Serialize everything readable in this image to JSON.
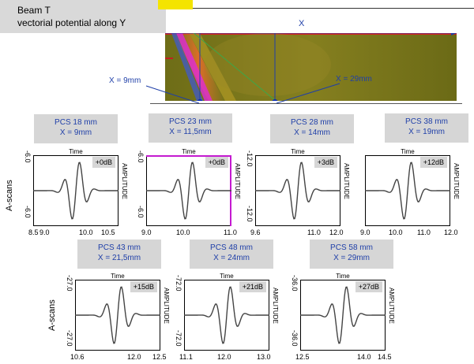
{
  "header": {
    "title_line1": "Beam T",
    "title_line2": "vectorial potential along Y"
  },
  "field": {
    "x_label": "X",
    "probe_label": "X = 9mm",
    "probe2_label": "X = 29mm"
  },
  "side_label": "A-scans",
  "time_label": "Time",
  "amplitude_label": "AMPLITUDE",
  "colors": {
    "field_bg": "#7b7a1a",
    "hot": "#f06c2a",
    "magenta": "#e02ad8",
    "line": "#1f3fa8",
    "pcs_bg": "#d6d6d6"
  },
  "row1": [
    {
      "pcs": "PCS 18 mm",
      "x": "X = 9mm",
      "gain": "+0dB",
      "ytop": "-6.0",
      "ybot": "-6.0",
      "ticks": [
        "8.5",
        "9.0",
        "10.0",
        "10.5"
      ]
    },
    {
      "pcs": "PCS 23 mm",
      "x": "X = 11,5mm",
      "gain": "+0dB",
      "ytop": "-6.0",
      "ybot": "-6.0",
      "ticks": [
        "9.0",
        "10.0",
        "11.0"
      ]
    },
    {
      "pcs": "PCS 28 mm",
      "x": "X = 14mm",
      "gain": "+3dB",
      "ytop": "-12.0",
      "ybot": "-12.0",
      "ticks": [
        "9.6",
        "11.0",
        "12.0"
      ]
    },
    {
      "pcs": "PCS 38 mm",
      "x": "X = 19mm",
      "gain": "+12dB",
      "ytop": "",
      "ybot": "",
      "ticks": [
        "9.0",
        "10.0",
        "11.0",
        "12.0"
      ]
    }
  ],
  "row2": [
    {
      "pcs": "PCS 43 mm",
      "x": "X = 21,5mm",
      "gain": "+15dB",
      "ytop": "-27.0",
      "ybot": "-27.0",
      "ticks": [
        "10.6",
        "12.0",
        "12.5"
      ]
    },
    {
      "pcs": "PCS 48 mm",
      "x": "X = 24mm",
      "gain": "+21dB",
      "ytop": "-72.0",
      "ybot": "-72.0",
      "ticks": [
        "11.1",
        "12.0",
        "13.0"
      ]
    },
    {
      "pcs": "PCS 58 mm",
      "x": "X = 29mm",
      "gain": "+27dB",
      "ytop": "-36.0",
      "ybot": "-36.0",
      "ticks": [
        "12.5",
        "14.0",
        "14.5"
      ]
    }
  ]
}
